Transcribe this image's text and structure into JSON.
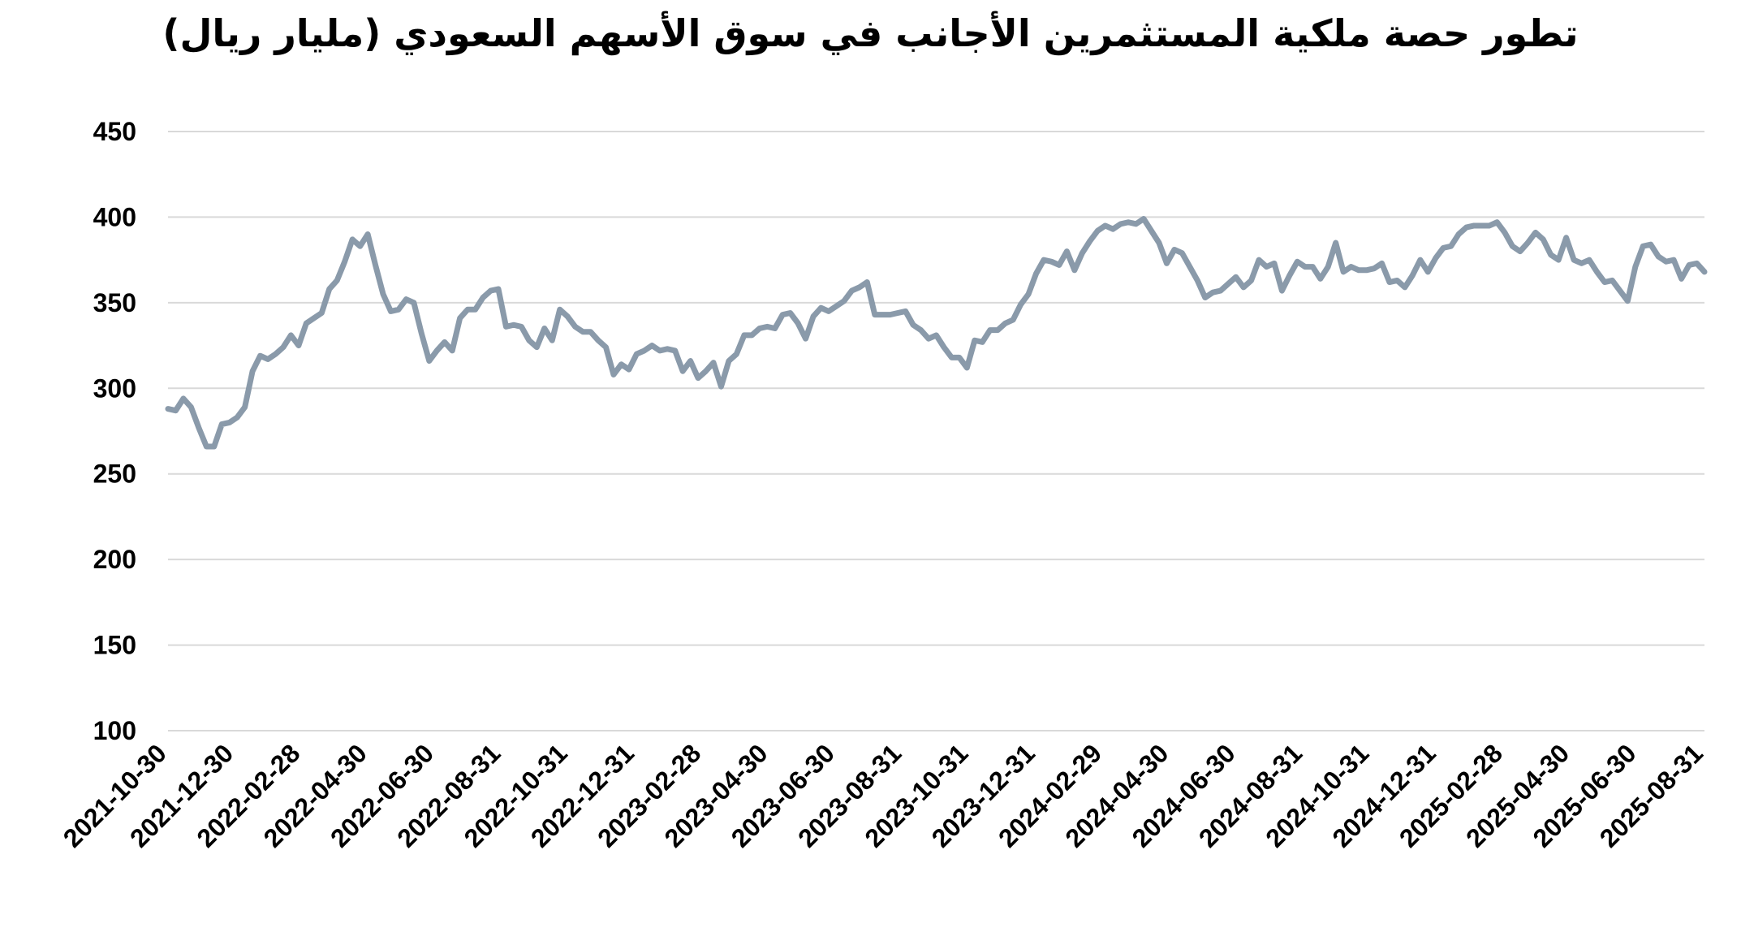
{
  "chart_data": {
    "type": "line",
    "title": "تطور حصة ملكية المستثمرين الأجانب في سوق الأسهم السعودي (مليار ريال)",
    "xlabel": "",
    "ylabel": "",
    "ylim": [
      100,
      450
    ],
    "yticks": [
      100,
      150,
      200,
      250,
      300,
      350,
      400,
      450
    ],
    "xticks": [
      "2021-10-30",
      "2021-12-30",
      "2022-02-28",
      "2022-04-30",
      "2022-06-30",
      "2022-08-31",
      "2022-10-31",
      "2022-12-31",
      "2023-02-28",
      "2023-04-30",
      "2023-06-30",
      "2023-08-31",
      "2023-10-31",
      "2023-12-31",
      "2024-02-29",
      "2024-04-30",
      "2024-06-30",
      "2024-08-31",
      "2024-10-31",
      "2024-12-31",
      "2025-02-28",
      "2025-04-30",
      "2025-06-30",
      "2025-08-31"
    ],
    "grid": true,
    "legend": "none",
    "line_color": "#8a9aaa",
    "series": [
      {
        "values": [
          288,
          287,
          294,
          289,
          277,
          266,
          266,
          279,
          280,
          283,
          289,
          310,
          319,
          317,
          320,
          324,
          331,
          325,
          338,
          341,
          344,
          358,
          363,
          374,
          387,
          383,
          390,
          372,
          355,
          345,
          346,
          352,
          350,
          332,
          316,
          322,
          327,
          322,
          341,
          346,
          346,
          353,
          357,
          358,
          336,
          337,
          336,
          328,
          324,
          335,
          328,
          346,
          342,
          336,
          333,
          333,
          328,
          324,
          308,
          314,
          311,
          320,
          322,
          325,
          322,
          323,
          322,
          310,
          316,
          306,
          310,
          315,
          301,
          316,
          320,
          331,
          331,
          335,
          336,
          335,
          343,
          344,
          338,
          329,
          342,
          347,
          345,
          348,
          351,
          357,
          359,
          362,
          343,
          343,
          343,
          344,
          345,
          337,
          334,
          329,
          331,
          324,
          318,
          318,
          312,
          328,
          327,
          334,
          334,
          338,
          340,
          349,
          355,
          367,
          375,
          374,
          372,
          380,
          369,
          379,
          386,
          392,
          395,
          393,
          396,
          397,
          396,
          399,
          392,
          385,
          373,
          381,
          379,
          371,
          363,
          353,
          356,
          357,
          361,
          365,
          359,
          363,
          375,
          371,
          373,
          357,
          366,
          374,
          371,
          371,
          364,
          371,
          385,
          368,
          371,
          369,
          369,
          370,
          373,
          362,
          363,
          359,
          366,
          375,
          368,
          376,
          382,
          383,
          390,
          394,
          395,
          395,
          395,
          397,
          391,
          383,
          380,
          385,
          391,
          387,
          378,
          375,
          388,
          375,
          373,
          375,
          368,
          362,
          363,
          357,
          351,
          371,
          383,
          384,
          377,
          374,
          375,
          364,
          372,
          373,
          368
        ]
      }
    ]
  }
}
